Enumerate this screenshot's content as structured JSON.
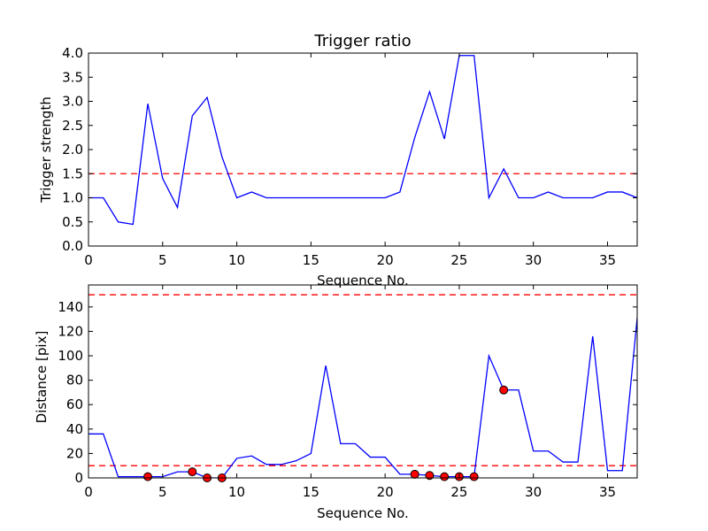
{
  "chart_data": [
    {
      "type": "line",
      "title": "Trigger ratio",
      "xlabel": "Sequence No.",
      "ylabel": "Trigger strength",
      "xlim": [
        0,
        37
      ],
      "ylim": [
        0,
        4.0
      ],
      "xticks": [
        0,
        5,
        10,
        15,
        20,
        25,
        30,
        35
      ],
      "yticks": [
        "0.0",
        "0.5",
        "1.0",
        "1.5",
        "2.0",
        "2.5",
        "3.0",
        "3.5",
        "4.0"
      ],
      "grid": false,
      "series": [
        {
          "color": "#0000ff",
          "x": [
            0,
            1,
            2,
            3,
            4,
            5,
            6,
            7,
            8,
            9,
            10,
            11,
            12,
            13,
            14,
            15,
            16,
            17,
            18,
            19,
            20,
            21,
            22,
            23,
            24,
            25,
            26,
            27,
            28,
            29,
            30,
            31,
            32,
            33,
            34,
            35,
            36,
            37
          ],
          "values": [
            1.0,
            1.0,
            0.5,
            0.45,
            2.95,
            1.4,
            0.8,
            2.7,
            3.08,
            1.85,
            1.0,
            1.12,
            1.0,
            1.0,
            1.0,
            1.0,
            1.0,
            1.0,
            1.0,
            1.0,
            1.0,
            1.12,
            2.25,
            3.2,
            2.22,
            3.95,
            3.95,
            1.0,
            1.6,
            1.0,
            1.0,
            1.12,
            1.0,
            1.0,
            1.0,
            1.12,
            1.12,
            1.0
          ]
        }
      ],
      "hlines": [
        {
          "y": 1.5,
          "color": "#ff0000",
          "style": "dashed"
        }
      ]
    },
    {
      "type": "line",
      "title": "",
      "xlabel": "Sequence No.",
      "ylabel": "Distance [pix]",
      "xlim": [
        0,
        37
      ],
      "ylim": [
        0,
        158
      ],
      "xticks": [
        0,
        5,
        10,
        15,
        20,
        25,
        30,
        35
      ],
      "yticks": [
        0,
        20,
        40,
        60,
        80,
        100,
        120,
        140
      ],
      "grid": false,
      "series": [
        {
          "color": "#0000ff",
          "x": [
            0,
            1,
            2,
            3,
            4,
            5,
            6,
            7,
            8,
            9,
            10,
            11,
            12,
            13,
            14,
            15,
            16,
            17,
            18,
            19,
            20,
            21,
            22,
            23,
            24,
            25,
            26,
            27,
            28,
            29,
            30,
            31,
            32,
            33,
            34,
            35,
            36,
            37
          ],
          "values": [
            36,
            36,
            1,
            1,
            1,
            1,
            5,
            5,
            0,
            0,
            16,
            18,
            11,
            11,
            14,
            20,
            92,
            28,
            28,
            17,
            17,
            3,
            3,
            2,
            1,
            1,
            1,
            100,
            72,
            72,
            22,
            22,
            13,
            13,
            116,
            6,
            6,
            131
          ]
        },
        {
          "type": "scatter",
          "color": "#ff0000",
          "x": [
            4,
            7,
            8,
            9,
            22,
            23,
            24,
            25,
            26,
            28
          ],
          "values": [
            1,
            5,
            0,
            0,
            3,
            2,
            1,
            1,
            1,
            72
          ]
        }
      ],
      "hlines": [
        {
          "y": 150,
          "color": "#ff0000",
          "style": "dashed"
        },
        {
          "y": 10,
          "color": "#ff0000",
          "style": "dashed"
        }
      ]
    }
  ]
}
